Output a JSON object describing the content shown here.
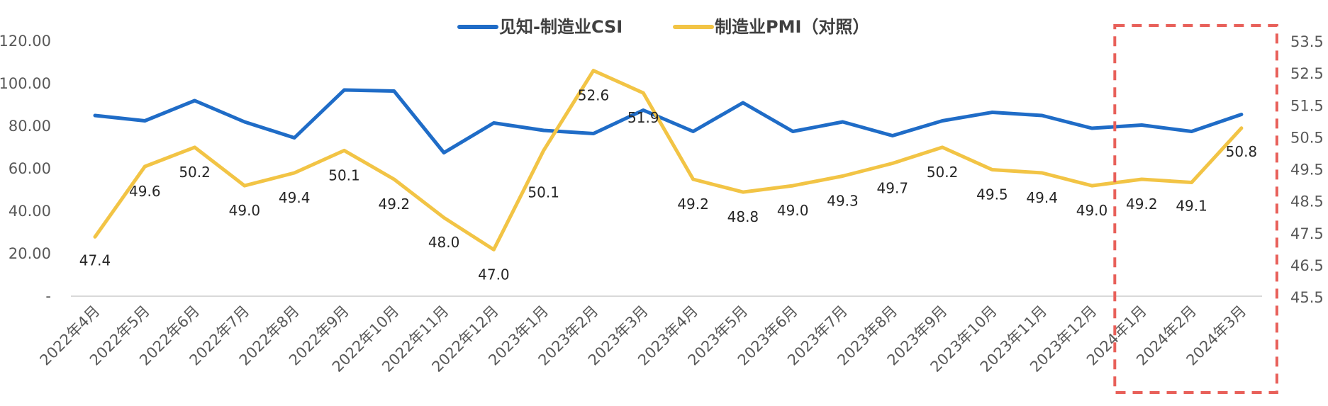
{
  "chart_data": {
    "type": "line",
    "categories": [
      "2022年4月",
      "2022年5月",
      "2022年6月",
      "2022年7月",
      "2022年8月",
      "2022年9月",
      "2022年10月",
      "2022年11月",
      "2022年12月",
      "2023年1月",
      "2023年2月",
      "2023年3月",
      "2023年4月",
      "2023年5月",
      "2023年6月",
      "2023年7月",
      "2023年8月",
      "2023年9月",
      "2023年10月",
      "2023年11月",
      "2023年12月",
      "2024年1月",
      "2024年2月",
      "2024年3月"
    ],
    "series": [
      {
        "name": "见知-制造业CSI",
        "axis": "left",
        "color": "#1F6CC7",
        "values": [
          85,
          82.5,
          92,
          82,
          74.5,
          97,
          96.5,
          67.5,
          81.5,
          78,
          76.5,
          87.5,
          77.5,
          91,
          77.5,
          82,
          75.5,
          82.5,
          86.5,
          85,
          79,
          80.5,
          77.5,
          85.5
        ]
      },
      {
        "name": "制造业PMI（对照）",
        "axis": "right",
        "color": "#F2C445",
        "values": [
          47.4,
          49.6,
          50.2,
          49.0,
          49.4,
          50.1,
          49.2,
          48.0,
          47.0,
          50.1,
          52.6,
          51.9,
          49.2,
          48.8,
          49.0,
          49.3,
          49.7,
          50.2,
          49.5,
          49.4,
          49.0,
          49.2,
          49.1,
          50.8
        ],
        "data_labels": [
          "47.4",
          "49.6",
          "50.2",
          "49.0",
          "49.4",
          "50.1",
          "49.2",
          "48.0",
          "47.0",
          "50.1",
          "52.6",
          "51.9",
          "49.2",
          "48.8",
          "49.0",
          "49.3",
          "49.7",
          "50.2",
          "49.5",
          "49.4",
          "49.0",
          "49.2",
          "49.1",
          "50.8"
        ]
      }
    ],
    "left_axis": {
      "ylim": [
        0,
        120
      ],
      "ticks": [
        "-",
        "20.00",
        "40.00",
        "60.00",
        "80.00",
        "100.00",
        "120.00"
      ],
      "tick_values": [
        0,
        20,
        40,
        60,
        80,
        100,
        120
      ]
    },
    "right_axis": {
      "ylim": [
        45.5,
        53.5
      ],
      "ticks": [
        "45.5",
        "46.5",
        "47.5",
        "48.5",
        "49.5",
        "50.5",
        "51.5",
        "52.5",
        "53.5"
      ],
      "tick_values": [
        45.5,
        46.5,
        47.5,
        48.5,
        49.5,
        50.5,
        51.5,
        52.5,
        53.5
      ]
    },
    "legend_position": "top-center",
    "grid": false,
    "highlight": {
      "categories": [
        "2024年1月",
        "2024年2月",
        "2024年3月"
      ],
      "style": "dashed",
      "color": "#E8605A"
    }
  }
}
